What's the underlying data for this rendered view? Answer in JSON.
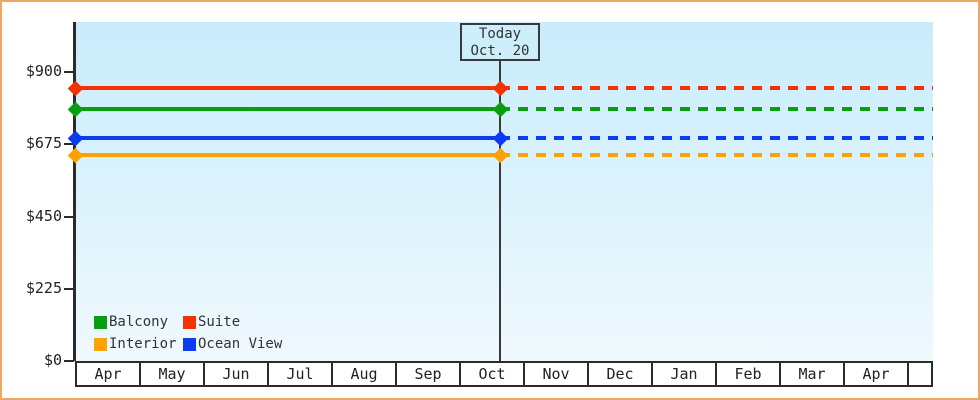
{
  "frame": {
    "border_color": "#eda763"
  },
  "chart_data": {
    "type": "line",
    "title": "",
    "xlabel": "",
    "ylabel": "",
    "x_categories": [
      "Apr",
      "May",
      "Jun",
      "Jul",
      "Aug",
      "Sep",
      "Oct",
      "Nov",
      "Dec",
      "Jan",
      "Feb",
      "Mar",
      "Apr",
      ""
    ],
    "y_ticks": [
      {
        "label": "$900",
        "value": 900
      },
      {
        "label": "$675",
        "value": 675
      },
      {
        "label": "$450",
        "value": 450
      },
      {
        "label": "$225",
        "value": 225
      },
      {
        "label": "$0",
        "value": 0
      }
    ],
    "ylim": [
      0,
      1055
    ],
    "grid": false,
    "series": [
      {
        "name": "Suite",
        "color": "#f23405",
        "value": 850,
        "style_before_today": "solid",
        "style_after_today": "dashed"
      },
      {
        "name": "Balcony",
        "color": "#089e10",
        "value": 785,
        "style_before_today": "solid",
        "style_after_today": "dashed"
      },
      {
        "name": "Ocean View",
        "color": "#0b3cf0",
        "value": 695,
        "style_before_today": "solid",
        "style_after_today": "dashed"
      },
      {
        "name": "Interior",
        "color": "#fba302",
        "value": 640,
        "style_before_today": "solid",
        "style_after_today": "dashed"
      }
    ],
    "today": {
      "label_line1": "Today",
      "label_line2": "Oct. 20",
      "month_index": 6,
      "day_fraction": 0.645
    },
    "legend": {
      "position": "bottom-left",
      "items": [
        {
          "label": "Balcony",
          "color": "#089e10"
        },
        {
          "label": "Suite",
          "color": "#f23405"
        },
        {
          "label": "Interior",
          "color": "#fba302"
        },
        {
          "label": "Ocean View",
          "color": "#0b3cf0"
        }
      ]
    }
  }
}
